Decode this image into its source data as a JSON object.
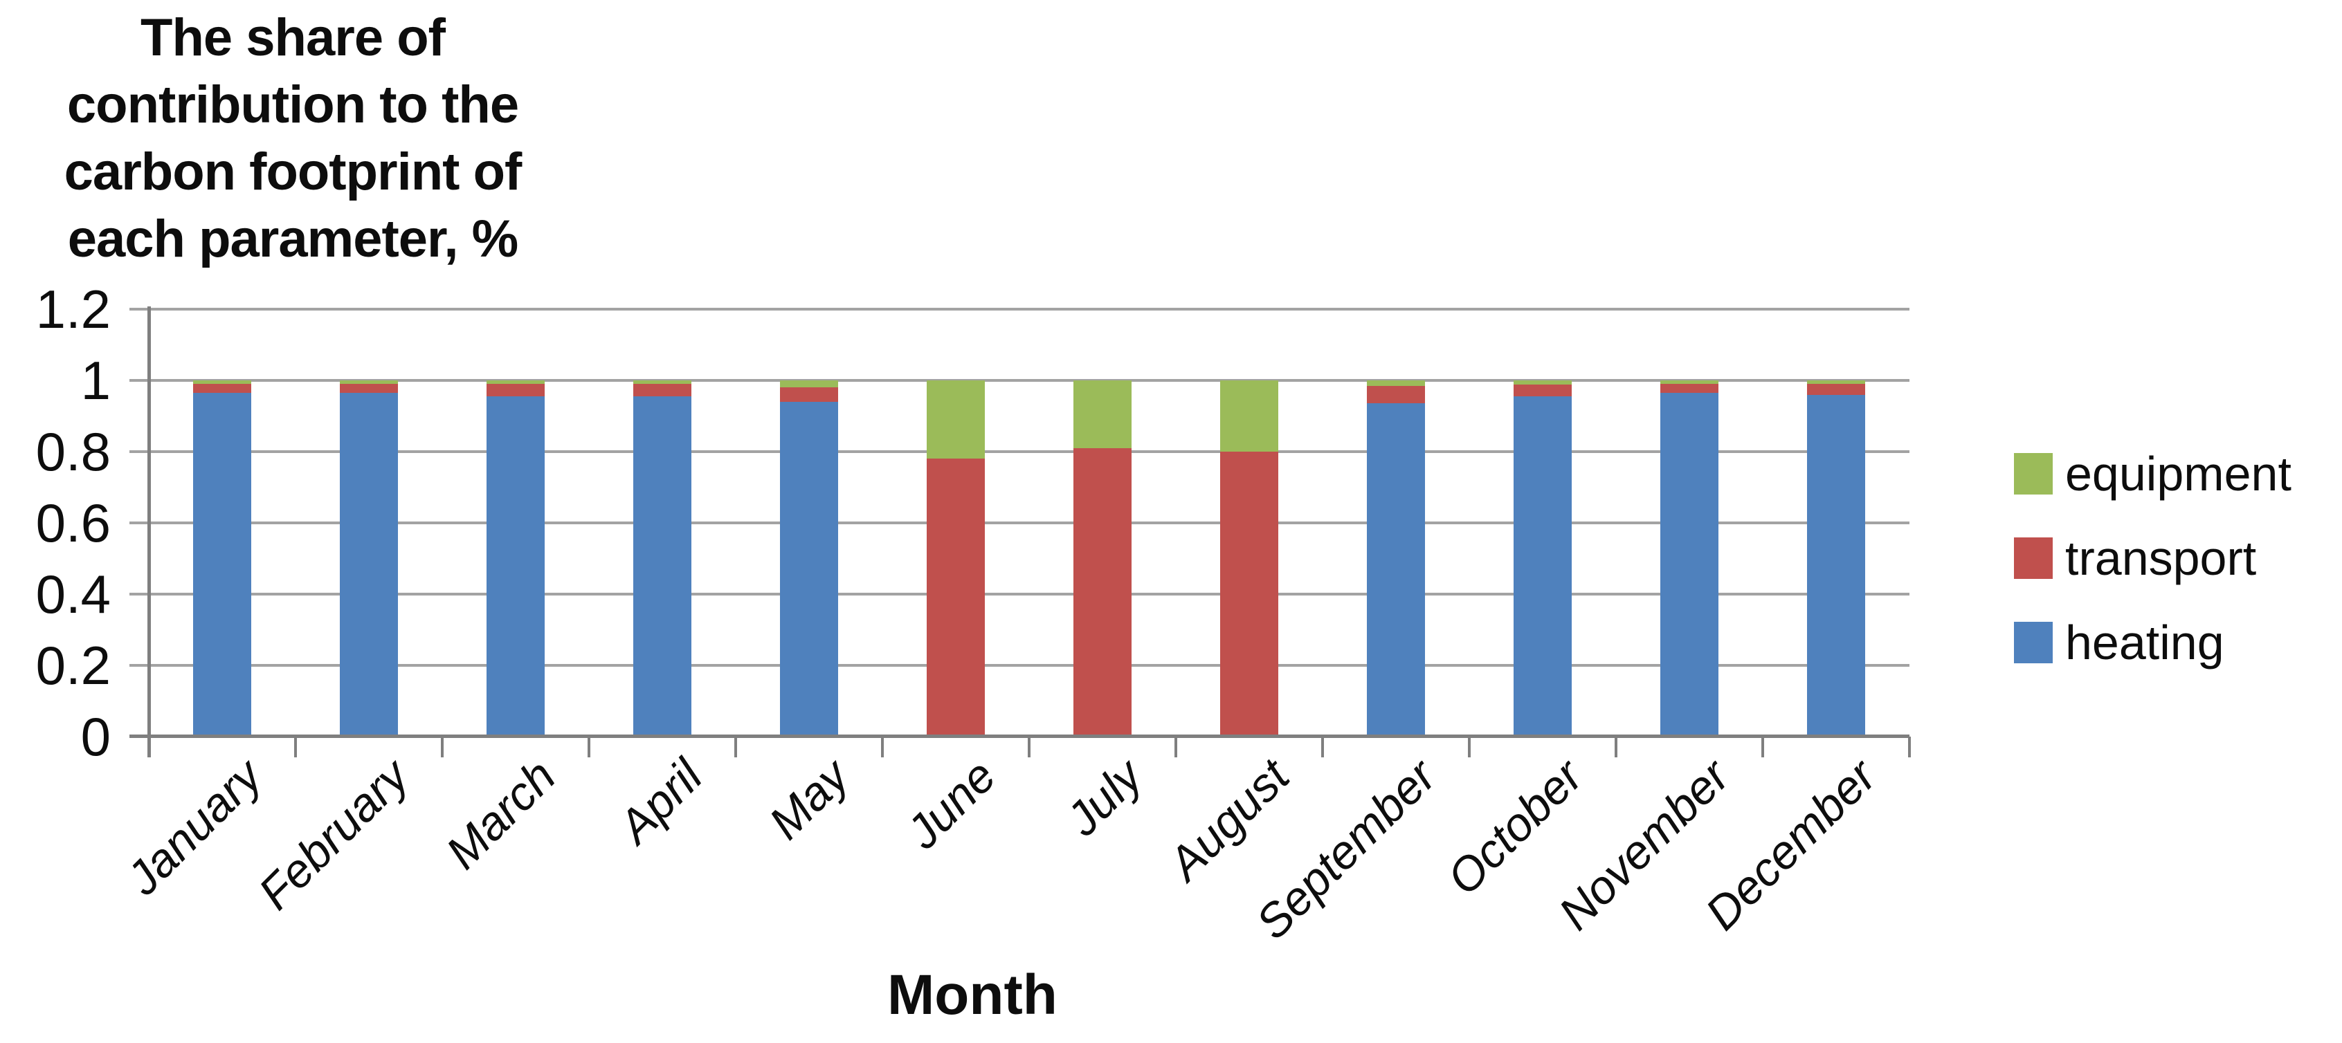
{
  "chart_data": {
    "type": "bar",
    "stacked": true,
    "title": "The share of\ncontribution to the\ncarbon footprint of\neach parameter, %",
    "xlabel": "Month",
    "ylabel": "",
    "ylim": [
      0,
      1.2
    ],
    "y_ticks": [
      0,
      0.2,
      0.4,
      0.6,
      0.8,
      1,
      1.2
    ],
    "grid": "horizontal",
    "legend_position": "right",
    "categories": [
      "January",
      "February",
      "March",
      "April",
      "May",
      "June",
      "July",
      "August",
      "September",
      "October",
      "November",
      "December"
    ],
    "series": [
      {
        "name": "heating",
        "color": "#4F81BD",
        "values": [
          0.965,
          0.965,
          0.955,
          0.955,
          0.94,
          0,
          0,
          0,
          0.935,
          0.955,
          0.965,
          0.96
        ]
      },
      {
        "name": "transport",
        "color": "#C0504D",
        "values": [
          0.025,
          0.025,
          0.035,
          0.035,
          0.04,
          0.78,
          0.81,
          0.8,
          0.05,
          0.033,
          0.025,
          0.03
        ]
      },
      {
        "name": "equipment",
        "color": "#9BBB59",
        "values": [
          0.01,
          0.01,
          0.01,
          0.01,
          0.02,
          0.22,
          0.19,
          0.2,
          0.015,
          0.012,
          0.01,
          0.01
        ]
      }
    ],
    "legend": [
      {
        "label": "equipment",
        "color": "#9BBB59"
      },
      {
        "label": "transport",
        "color": "#C0504D"
      },
      {
        "label": "heating",
        "color": "#4F81BD"
      }
    ],
    "axis_color": "#7F7F7F",
    "gridline_color": "#A3A3A3"
  }
}
